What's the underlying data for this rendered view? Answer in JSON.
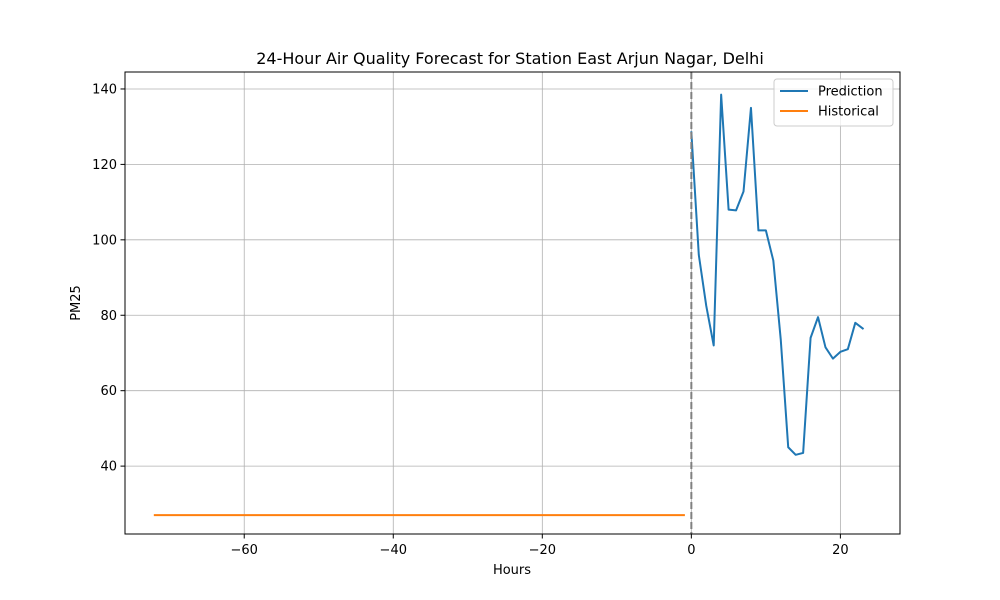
{
  "chart_data": {
    "type": "line",
    "title": "24-Hour Air Quality Forecast for Station East Arjun Nagar, Delhi",
    "xlabel": "Hours",
    "ylabel": "PM25",
    "xlim": [
      -76,
      28
    ],
    "ylim": [
      22,
      144.5
    ],
    "xticks": [
      -60,
      -40,
      -20,
      0,
      20
    ],
    "yticks": [
      40,
      60,
      80,
      100,
      120,
      140
    ],
    "grid": true,
    "legend_position": "top-right",
    "vline": {
      "x": 0,
      "style": "dashed",
      "color": "#808080"
    },
    "series": [
      {
        "name": "Prediction",
        "color": "#1f77b4",
        "x": [
          0,
          1,
          2,
          3,
          4,
          5,
          6,
          7,
          8,
          9,
          10,
          11,
          12,
          13,
          14,
          15,
          16,
          17,
          18,
          19,
          20,
          21,
          22,
          23
        ],
        "y": [
          128.5,
          96,
          82.5,
          72,
          138.5,
          108,
          107.8,
          112.8,
          135,
          102.5,
          102.5,
          94.5,
          73.5,
          45,
          43,
          43.5,
          74,
          79.5,
          71.5,
          68.5,
          70.3,
          71,
          78,
          76.5
        ]
      },
      {
        "name": "Historical",
        "color": "#ff7f0e",
        "x": [
          -72,
          -1
        ],
        "y": [
          27,
          27
        ]
      }
    ]
  }
}
